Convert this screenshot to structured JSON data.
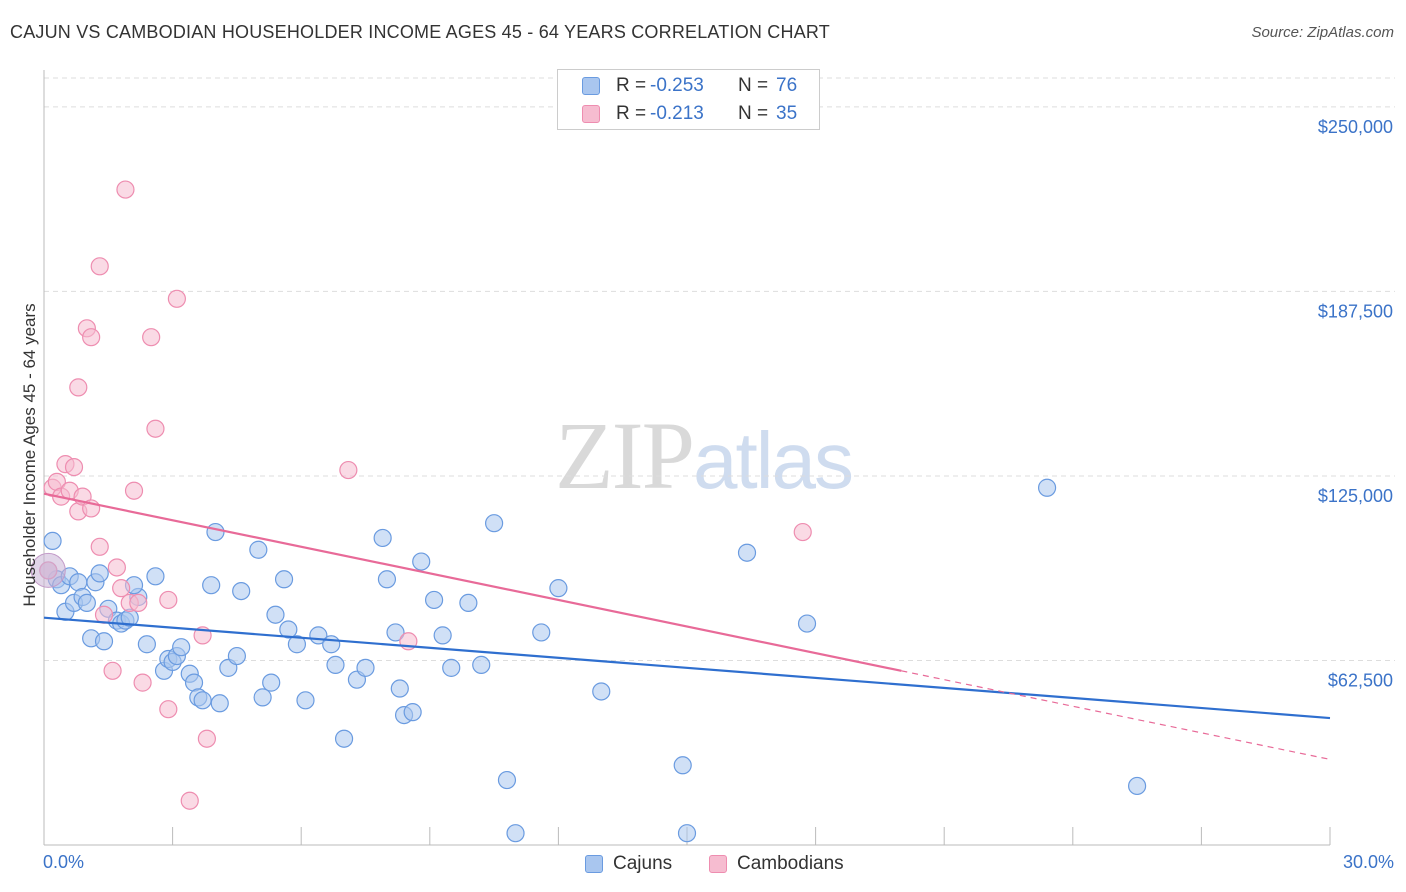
{
  "title": "CAJUN VS CAMBODIAN HOUSEHOLDER INCOME AGES 45 - 64 YEARS CORRELATION CHART",
  "source": "Source: ZipAtlas.com",
  "watermark": {
    "zip": "ZIP",
    "atlas": "atlas"
  },
  "legend": {
    "cajuns": {
      "r_label": "R =",
      "r_value": "-0.253",
      "n_label": "N =",
      "n_value": "76"
    },
    "cambodians": {
      "r_label": "R =",
      "r_value": "-0.213",
      "n_label": "N =",
      "n_value": "35"
    }
  },
  "colors": {
    "cajun_fill": "#a9c6ef",
    "cajun_stroke": "#6a9be0",
    "cajun_line": "#2f6fcf",
    "cambodian_fill": "#f6bcd0",
    "cambodian_stroke": "#ee8db0",
    "cambodian_line": "#e86a98",
    "tick_label": "#3b73c8",
    "grid": "#dddddd"
  },
  "chart_data": {
    "type": "scatter",
    "title": "CAJUN VS CAMBODIAN HOUSEHOLDER INCOME AGES 45 - 64 YEARS CORRELATION CHART",
    "xlabel": "",
    "ylabel": "Householder Income Ages 45 - 64 years",
    "xlim": [
      0,
      30
    ],
    "ylim": [
      0,
      262500
    ],
    "x_tick_labels": [
      "0.0%",
      "30.0%"
    ],
    "y_ticks": [
      62500,
      125000,
      187500,
      250000
    ],
    "y_tick_labels": [
      "$62,500",
      "$125,000",
      "$187,500",
      "$250,000"
    ],
    "grid": true,
    "legend_position": "top-center and bottom",
    "series": [
      {
        "name": "Cajuns",
        "r": -0.253,
        "n": 76,
        "trend": {
          "x": [
            0,
            30
          ],
          "y": [
            77000,
            43000
          ]
        },
        "points": [
          [
            0.2,
            103000
          ],
          [
            0.3,
            90000
          ],
          [
            0.4,
            88000
          ],
          [
            0.5,
            79000
          ],
          [
            0.6,
            91000
          ],
          [
            0.7,
            82000
          ],
          [
            0.8,
            89000
          ],
          [
            0.9,
            84000
          ],
          [
            1.0,
            82000
          ],
          [
            1.1,
            70000
          ],
          [
            1.2,
            89000
          ],
          [
            1.3,
            92000
          ],
          [
            1.4,
            69000
          ],
          [
            1.5,
            80000
          ],
          [
            1.7,
            76000
          ],
          [
            1.8,
            75000
          ],
          [
            1.9,
            76000
          ],
          [
            2.0,
            77000
          ],
          [
            2.2,
            84000
          ],
          [
            2.4,
            68000
          ],
          [
            2.6,
            91000
          ],
          [
            2.8,
            59000
          ],
          [
            2.9,
            63000
          ],
          [
            3.0,
            62000
          ],
          [
            3.1,
            64000
          ],
          [
            3.2,
            67000
          ],
          [
            3.4,
            58000
          ],
          [
            3.5,
            55000
          ],
          [
            3.6,
            50000
          ],
          [
            3.7,
            49000
          ],
          [
            3.9,
            88000
          ],
          [
            4.0,
            106000
          ],
          [
            4.1,
            48000
          ],
          [
            4.3,
            60000
          ],
          [
            4.5,
            64000
          ],
          [
            4.6,
            86000
          ],
          [
            5.0,
            100000
          ],
          [
            5.1,
            50000
          ],
          [
            5.3,
            55000
          ],
          [
            5.4,
            78000
          ],
          [
            5.6,
            90000
          ],
          [
            5.7,
            73000
          ],
          [
            5.9,
            68000
          ],
          [
            6.1,
            49000
          ],
          [
            6.4,
            71000
          ],
          [
            6.7,
            68000
          ],
          [
            6.8,
            61000
          ],
          [
            7.0,
            36000
          ],
          [
            7.3,
            56000
          ],
          [
            7.5,
            60000
          ],
          [
            7.9,
            104000
          ],
          [
            8.0,
            90000
          ],
          [
            8.2,
            72000
          ],
          [
            8.3,
            53000
          ],
          [
            8.4,
            44000
          ],
          [
            8.6,
            45000
          ],
          [
            8.8,
            96000
          ],
          [
            9.1,
            83000
          ],
          [
            9.3,
            71000
          ],
          [
            9.5,
            60000
          ],
          [
            9.9,
            82000
          ],
          [
            10.2,
            61000
          ],
          [
            10.5,
            109000
          ],
          [
            10.8,
            22000
          ],
          [
            11.0,
            4000
          ],
          [
            11.6,
            72000
          ],
          [
            12.0,
            87000
          ],
          [
            13.0,
            52000
          ],
          [
            14.9,
            27000
          ],
          [
            15.0,
            4000
          ],
          [
            16.4,
            99000
          ],
          [
            17.8,
            75000
          ],
          [
            23.4,
            121000
          ],
          [
            25.5,
            20000
          ],
          [
            0.1,
            93000
          ],
          [
            2.1,
            88000
          ]
        ]
      },
      {
        "name": "Cambodians",
        "r": -0.213,
        "n": 35,
        "trend": {
          "x": [
            0,
            20
          ],
          "y": [
            119000,
            59000
          ]
        },
        "trend_dashed": {
          "x": [
            20,
            30
          ],
          "y": [
            59000,
            29000
          ]
        },
        "points": [
          [
            0.1,
            93000
          ],
          [
            0.2,
            121000
          ],
          [
            0.3,
            123000
          ],
          [
            0.4,
            118000
          ],
          [
            0.5,
            129000
          ],
          [
            0.6,
            120000
          ],
          [
            0.7,
            128000
          ],
          [
            0.8,
            155000
          ],
          [
            0.8,
            113000
          ],
          [
            0.9,
            118000
          ],
          [
            1.0,
            175000
          ],
          [
            1.1,
            172000
          ],
          [
            1.1,
            114000
          ],
          [
            1.3,
            196000
          ],
          [
            1.3,
            101000
          ],
          [
            1.4,
            78000
          ],
          [
            1.6,
            59000
          ],
          [
            1.7,
            94000
          ],
          [
            1.8,
            87000
          ],
          [
            1.9,
            222000
          ],
          [
            2.0,
            82000
          ],
          [
            2.1,
            120000
          ],
          [
            2.2,
            82000
          ],
          [
            2.3,
            55000
          ],
          [
            2.5,
            172000
          ],
          [
            2.6,
            141000
          ],
          [
            2.9,
            83000
          ],
          [
            2.9,
            46000
          ],
          [
            3.1,
            185000
          ],
          [
            3.4,
            15000
          ],
          [
            3.7,
            71000
          ],
          [
            3.8,
            36000
          ],
          [
            7.1,
            127000
          ],
          [
            8.5,
            69000
          ],
          [
            17.7,
            106000
          ]
        ]
      }
    ]
  }
}
